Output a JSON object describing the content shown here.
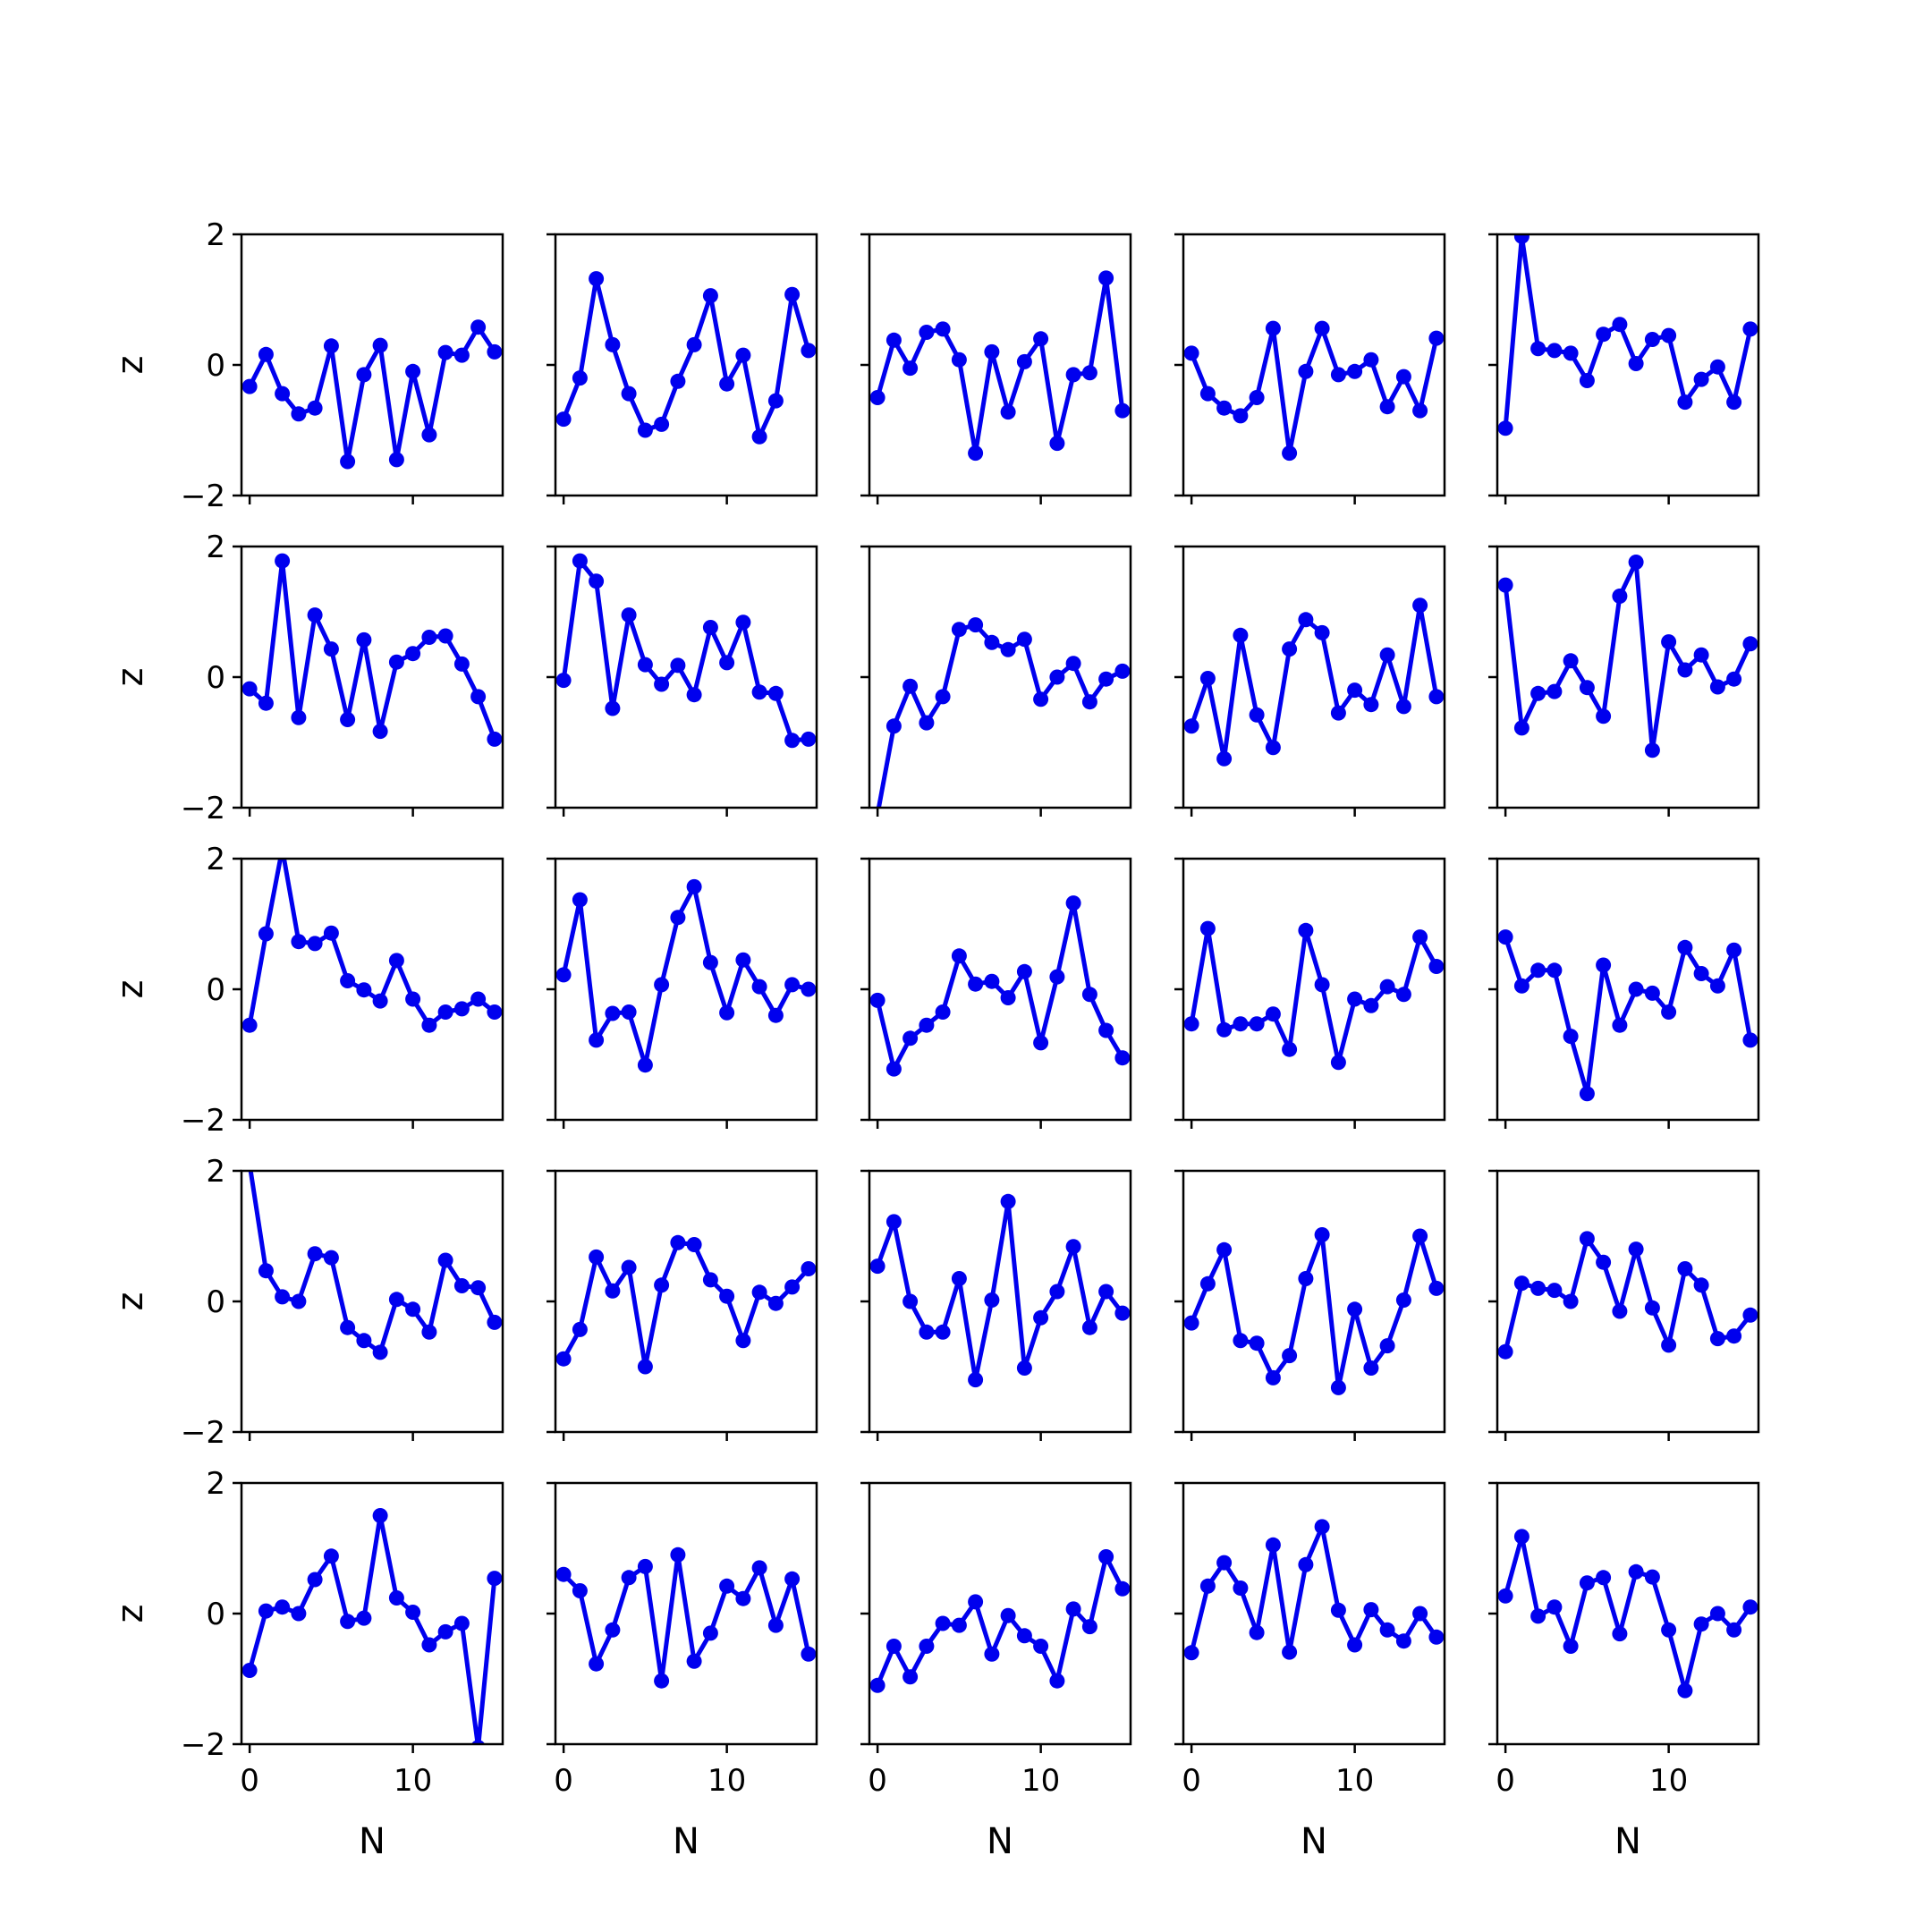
{
  "chart_data": {
    "type": "line",
    "layout": "5x5 small multiples, shared axes",
    "xlabel": "N",
    "ylabel": "z",
    "xlim": [
      -0.5,
      15.5
    ],
    "ylim": [
      -2,
      2
    ],
    "xticks": [
      0,
      10
    ],
    "xtick_labels": [
      "0",
      "10"
    ],
    "yticks": [
      2,
      0,
      -2
    ],
    "ytick_labels": [
      "2",
      "0",
      "−2"
    ],
    "line_color": "#0000ee",
    "marker": "circle",
    "grid": false,
    "x": [
      0,
      1,
      2,
      3,
      4,
      5,
      6,
      7,
      8,
      9,
      10,
      11,
      12,
      13,
      14,
      15
    ],
    "panels": [
      [
        -0.33,
        0.16,
        -0.44,
        -0.75,
        -0.66,
        0.29,
        -1.48,
        -0.15,
        0.3,
        -1.45,
        -0.1,
        -1.07,
        0.19,
        0.15,
        0.58,
        0.2
      ],
      [
        -0.83,
        -0.2,
        1.32,
        0.31,
        -0.44,
        -1.0,
        -0.91,
        -0.25,
        0.31,
        1.06,
        -0.29,
        0.15,
        -1.1,
        -0.55,
        1.08,
        0.22
      ],
      [
        -0.5,
        0.38,
        -0.05,
        0.5,
        0.55,
        0.08,
        -1.35,
        0.2,
        -0.72,
        0.05,
        0.4,
        -1.2,
        -0.15,
        -0.12,
        1.33,
        -0.7
      ],
      [
        0.18,
        -0.44,
        -0.66,
        -0.78,
        -0.5,
        0.56,
        -1.35,
        -0.1,
        0.56,
        -0.15,
        -0.1,
        0.08,
        -0.64,
        -0.18,
        -0.7,
        0.41
      ],
      [
        -0.97,
        1.97,
        0.25,
        0.22,
        0.18,
        -0.24,
        0.47,
        0.62,
        0.02,
        0.39,
        0.45,
        -0.57,
        -0.22,
        -0.03,
        -0.57,
        0.55
      ],
      [
        -0.18,
        -0.4,
        1.78,
        -0.62,
        0.95,
        0.43,
        -0.65,
        0.57,
        -0.83,
        0.23,
        0.36,
        0.61,
        0.63,
        0.2,
        -0.3,
        -0.95
      ],
      [
        -0.05,
        1.78,
        1.47,
        -0.48,
        0.95,
        0.19,
        -0.11,
        0.18,
        -0.27,
        0.76,
        0.22,
        0.84,
        -0.23,
        -0.25,
        -0.97,
        -0.95
      ],
      [
        -2.1,
        -0.75,
        -0.14,
        -0.7,
        -0.3,
        0.73,
        0.8,
        0.53,
        0.42,
        0.58,
        -0.34,
        0.0,
        0.21,
        -0.38,
        -0.03,
        0.09
      ],
      [
        -0.75,
        -0.02,
        -1.25,
        0.64,
        -0.58,
        -1.08,
        0.43,
        0.88,
        0.68,
        -0.55,
        -0.2,
        -0.42,
        0.34,
        -0.45,
        1.1,
        -0.3
      ],
      [
        1.41,
        -0.78,
        -0.25,
        -0.22,
        0.25,
        -0.16,
        -0.6,
        1.24,
        1.76,
        -1.12,
        0.54,
        0.11,
        0.34,
        -0.15,
        -0.03,
        0.51
      ],
      [
        -0.55,
        0.85,
        2.15,
        0.73,
        0.7,
        0.86,
        0.13,
        -0.01,
        -0.18,
        0.44,
        -0.15,
        -0.55,
        -0.35,
        -0.3,
        -0.15,
        -0.35
      ],
      [
        0.22,
        1.37,
        -0.78,
        -0.37,
        -0.35,
        -1.16,
        0.07,
        1.1,
        1.57,
        0.41,
        -0.36,
        0.45,
        0.04,
        -0.4,
        0.07,
        0.0
      ],
      [
        -0.17,
        -1.22,
        -0.75,
        -0.55,
        -0.35,
        0.51,
        0.08,
        0.12,
        -0.13,
        0.27,
        -0.82,
        0.19,
        1.32,
        -0.08,
        -0.63,
        -1.05
      ],
      [
        -0.53,
        0.93,
        -0.62,
        -0.53,
        -0.53,
        -0.38,
        -0.92,
        0.9,
        0.07,
        -1.12,
        -0.15,
        -0.25,
        0.04,
        -0.08,
        0.8,
        0.35
      ],
      [
        0.8,
        0.05,
        0.29,
        0.29,
        -0.72,
        -1.6,
        0.37,
        -0.55,
        0.0,
        -0.06,
        -0.35,
        0.64,
        0.24,
        0.05,
        0.6,
        -0.78
      ],
      [
        2.1,
        0.47,
        0.07,
        0.0,
        0.73,
        0.67,
        -0.4,
        -0.6,
        -0.78,
        0.03,
        -0.12,
        -0.47,
        0.63,
        0.24,
        0.21,
        -0.32
      ],
      [
        -0.88,
        -0.43,
        0.68,
        0.16,
        0.52,
        -1.0,
        0.25,
        0.9,
        0.87,
        0.33,
        0.08,
        -0.6,
        0.14,
        -0.03,
        0.22,
        0.5
      ],
      [
        0.54,
        1.22,
        0.0,
        -0.47,
        -0.47,
        0.35,
        -1.2,
        0.02,
        1.53,
        -1.02,
        -0.25,
        0.15,
        0.84,
        -0.4,
        0.15,
        -0.18
      ],
      [
        -0.33,
        0.27,
        0.79,
        -0.6,
        -0.64,
        -1.17,
        -0.83,
        0.35,
        1.02,
        -1.32,
        -0.12,
        -1.02,
        -0.68,
        0.02,
        1.0,
        0.2
      ],
      [
        -0.77,
        0.28,
        0.2,
        0.17,
        0.0,
        0.96,
        0.6,
        -0.15,
        0.8,
        -0.1,
        -0.67,
        0.5,
        0.25,
        -0.57,
        -0.53,
        -0.21
      ],
      [
        -0.87,
        0.04,
        0.1,
        0.0,
        0.52,
        0.88,
        -0.12,
        -0.07,
        1.5,
        0.24,
        0.02,
        -0.48,
        -0.28,
        -0.15,
        -2.05,
        0.54
      ],
      [
        0.6,
        0.35,
        -0.77,
        -0.25,
        0.55,
        0.72,
        -1.03,
        0.9,
        -0.73,
        -0.3,
        0.42,
        0.23,
        0.7,
        -0.18,
        0.53,
        -0.62
      ],
      [
        -1.1,
        -0.5,
        -0.97,
        -0.5,
        -0.15,
        -0.18,
        0.18,
        -0.62,
        -0.03,
        -0.34,
        -0.5,
        -1.03,
        0.07,
        -0.2,
        0.87,
        0.38
      ],
      [
        -0.6,
        0.42,
        0.78,
        0.39,
        -0.29,
        1.05,
        -0.59,
        0.75,
        1.33,
        0.05,
        -0.48,
        0.06,
        -0.25,
        -0.42,
        0.0,
        -0.36
      ],
      [
        0.27,
        1.18,
        -0.04,
        0.1,
        -0.5,
        0.47,
        0.55,
        -0.31,
        0.64,
        0.56,
        -0.25,
        -1.18,
        -0.16,
        0.0,
        -0.25,
        0.1
      ]
    ]
  }
}
